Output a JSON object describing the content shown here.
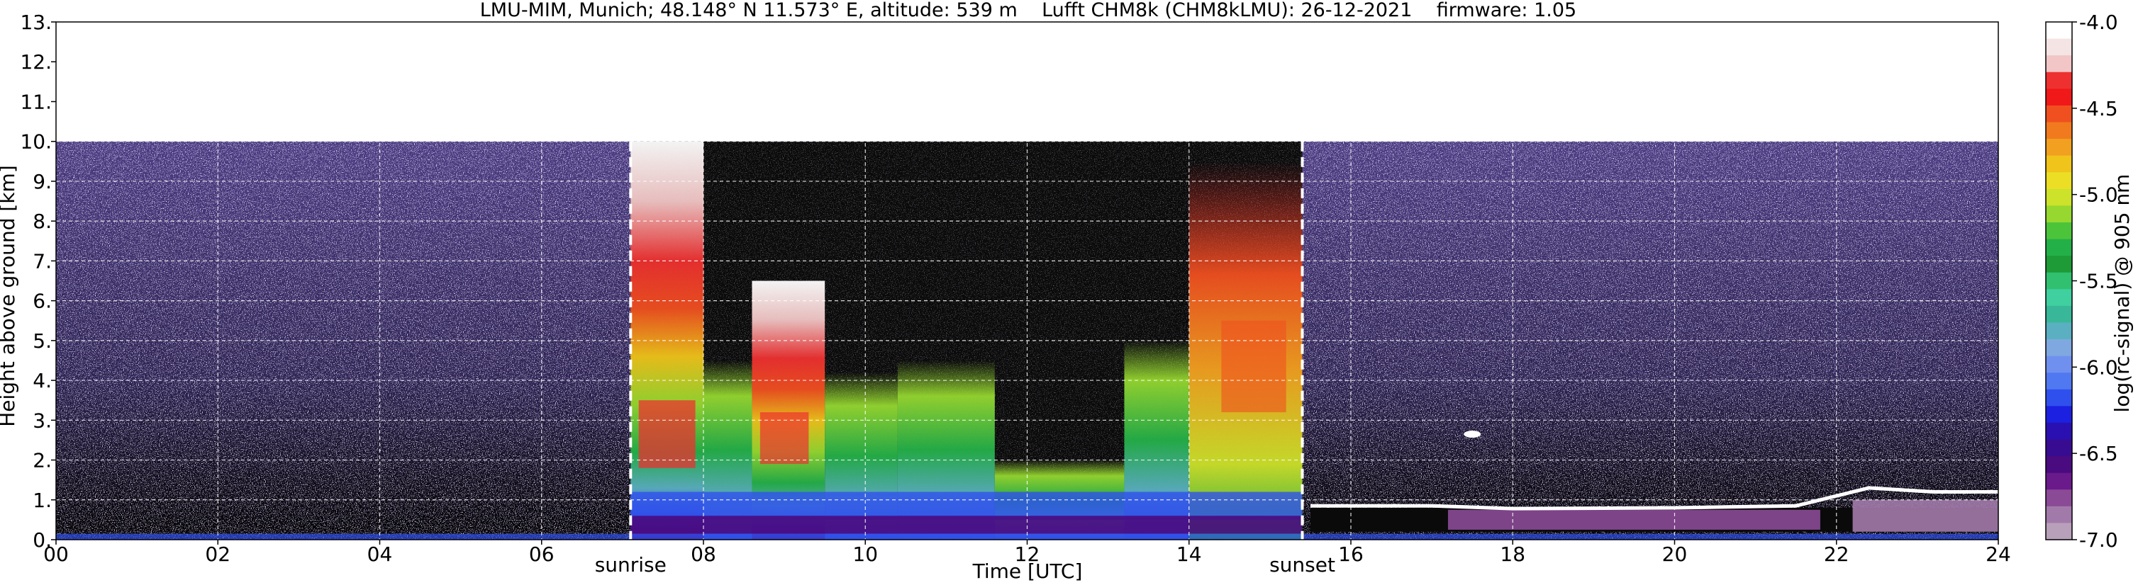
{
  "chart_data": {
    "type": "heatmap",
    "title": "LMU-MIM, Munich; 48.148° N 11.573° E, altitude: 539 m    Lufft CHM8k (CHM8kLMU): 26-12-2021    firmware: 1.05",
    "xlabel": "Time [UTC]",
    "ylabel": "Height above ground [km]",
    "xlim": [
      0,
      24
    ],
    "ylim": [
      0,
      13
    ],
    "x_ticks": [
      "00",
      "02",
      "04",
      "06",
      "08",
      "10",
      "12",
      "14",
      "16",
      "18",
      "20",
      "22",
      "24"
    ],
    "y_ticks": [
      "0.",
      "1.",
      "2.",
      "3.",
      "4.",
      "5.",
      "6.",
      "7.",
      "8.",
      "9.",
      "10.",
      "11.",
      "12.",
      "13."
    ],
    "grid": true,
    "data_top_km": 10,
    "colorbar": {
      "label": "log(rc-signal) @ 905 nm",
      "range": [
        -7.0,
        -4.0
      ],
      "ticks": [
        "-4.0",
        "-4.5",
        "-5.0",
        "-5.5",
        "-6.0",
        "-6.5",
        "-7.0"
      ],
      "colors": [
        "#ffffff",
        "#f4e4e4",
        "#f2c6c6",
        "#ee3030",
        "#f01818",
        "#f05020",
        "#f27a1e",
        "#f2a020",
        "#f0c41a",
        "#ecde24",
        "#cde22a",
        "#96d830",
        "#4cc43a",
        "#24b048",
        "#1e9a36",
        "#30c070",
        "#40d0a0",
        "#38b898",
        "#5ab0c0",
        "#80a8e0",
        "#7090f0",
        "#5078f0",
        "#3050ee",
        "#1c20e0",
        "#2a10b0",
        "#380c90",
        "#4a0a80",
        "#6a1a8a",
        "#8a4a96",
        "#a27aaa",
        "#b8a0ba"
      ]
    },
    "annotations": [
      {
        "label": "sunrise",
        "x": 7.1
      },
      {
        "label": "sunset",
        "x": 15.4
      }
    ]
  }
}
